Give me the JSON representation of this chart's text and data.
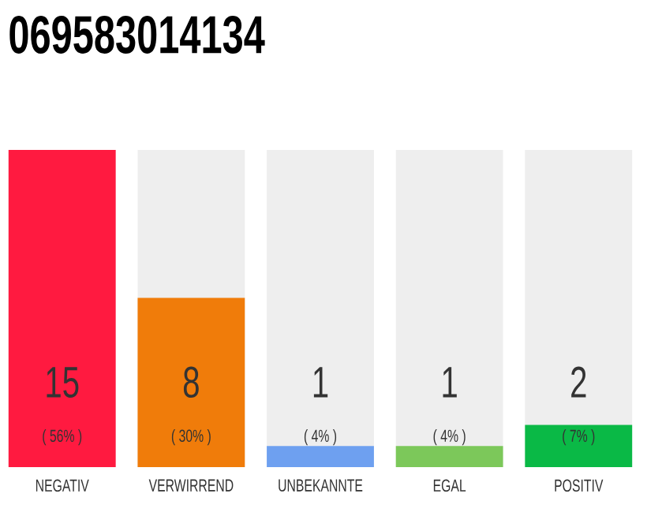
{
  "chart_data": {
    "type": "bar",
    "title": "069583014134",
    "categories": [
      "NEGATIV",
      "VERWIRREND",
      "UNBEKANNTE",
      "EGAL",
      "POSITIV"
    ],
    "values": [
      15,
      8,
      1,
      1,
      2
    ],
    "colors": [
      "#ff1a40",
      "#f07c0a",
      "#6ea0f0",
      "#7cc85a",
      "#0ab946"
    ],
    "data_labels": true,
    "annotations": [
      "( 56% )",
      "( 30% )",
      "( 4% )",
      "( 4% )",
      "( 7% )"
    ]
  }
}
